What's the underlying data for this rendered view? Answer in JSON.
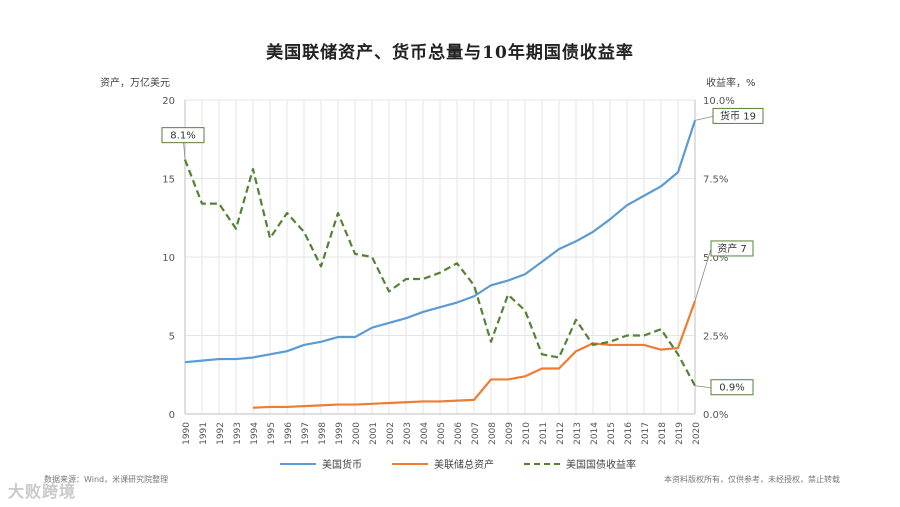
{
  "title": "美国联储资产、货币总量与10年期国债收益率",
  "source": "数据来源：Wind，米课研究院整理",
  "copyright": "本资料版权所有，仅供参考，未经授权，禁止转载",
  "watermark": "大败跨境",
  "chart_data": {
    "type": "line",
    "title": "美国联储资产、货币总量与10年期国债收益率",
    "ylabel": "资产，万亿美元",
    "ylabel_right": "收益率，%",
    "ylim": [
      0,
      20
    ],
    "ylim_right": [
      0,
      10
    ],
    "yticks": [
      "0",
      "5",
      "10",
      "15",
      "20"
    ],
    "yticks_right": [
      "0.0%",
      "2.5%",
      "5.0%",
      "7.5%",
      "10.0%"
    ],
    "grid": true,
    "legend_position": "bottom",
    "x": [
      1990,
      1991,
      1992,
      1993,
      1994,
      1995,
      1996,
      1997,
      1998,
      1999,
      2000,
      2001,
      2002,
      2003,
      2004,
      2005,
      2006,
      2007,
      2008,
      2009,
      2010,
      2011,
      2012,
      2013,
      2014,
      2015,
      2016,
      2017,
      2018,
      2019,
      2020
    ],
    "x_labels": [
      "1990",
      "1991",
      "1992",
      "1993",
      "1994",
      "1995",
      "1996",
      "1997",
      "1998",
      "1999",
      "2000",
      "2001",
      "2002",
      "2003",
      "2004",
      "2005",
      "2006",
      "2007",
      "2008",
      "2009",
      "2010",
      "2011",
      "2012",
      "2013",
      "2014",
      "2015",
      "2016",
      "2017",
      "2018",
      "2019",
      "2020"
    ],
    "series": [
      {
        "name": "美国货币",
        "color": "#5b9bd5",
        "axis": "left",
        "style": "solid",
        "values": [
          3.3,
          3.4,
          3.5,
          3.5,
          3.6,
          3.8,
          4.0,
          4.4,
          4.6,
          4.9,
          4.9,
          5.5,
          5.8,
          6.1,
          6.5,
          6.8,
          7.1,
          7.5,
          8.2,
          8.5,
          8.9,
          9.7,
          10.5,
          11.0,
          11.6,
          12.4,
          13.3,
          13.9,
          14.5,
          15.4,
          18.7
        ]
      },
      {
        "name": "美联储总资产",
        "color": "#ed7d31",
        "axis": "left",
        "style": "solid",
        "values": [
          null,
          null,
          null,
          null,
          0.4,
          0.45,
          0.45,
          0.5,
          0.55,
          0.6,
          0.6,
          0.65,
          0.7,
          0.75,
          0.8,
          0.8,
          0.85,
          0.9,
          2.2,
          2.2,
          2.4,
          2.9,
          2.9,
          4.0,
          4.5,
          4.4,
          4.4,
          4.4,
          4.1,
          4.2,
          7.2
        ]
      },
      {
        "name": "美国国债收益率",
        "color": "#548235",
        "axis": "right",
        "style": "dashed",
        "values": [
          8.1,
          6.7,
          6.7,
          5.9,
          7.8,
          5.6,
          6.4,
          5.8,
          4.7,
          6.4,
          5.1,
          5.0,
          3.9,
          4.3,
          4.3,
          4.5,
          4.8,
          4.1,
          2.3,
          3.8,
          3.3,
          1.9,
          1.8,
          3.0,
          2.2,
          2.3,
          2.5,
          2.5,
          2.7,
          1.9,
          0.9
        ]
      }
    ],
    "annotations": [
      {
        "text": "8.1%",
        "series": 2,
        "index": 0
      },
      {
        "text": "货币 19",
        "series": 0,
        "index": 30
      },
      {
        "text": "资产 7",
        "series": 1,
        "index": 30
      },
      {
        "text": "0.9%",
        "series": 2,
        "index": 30
      }
    ]
  }
}
